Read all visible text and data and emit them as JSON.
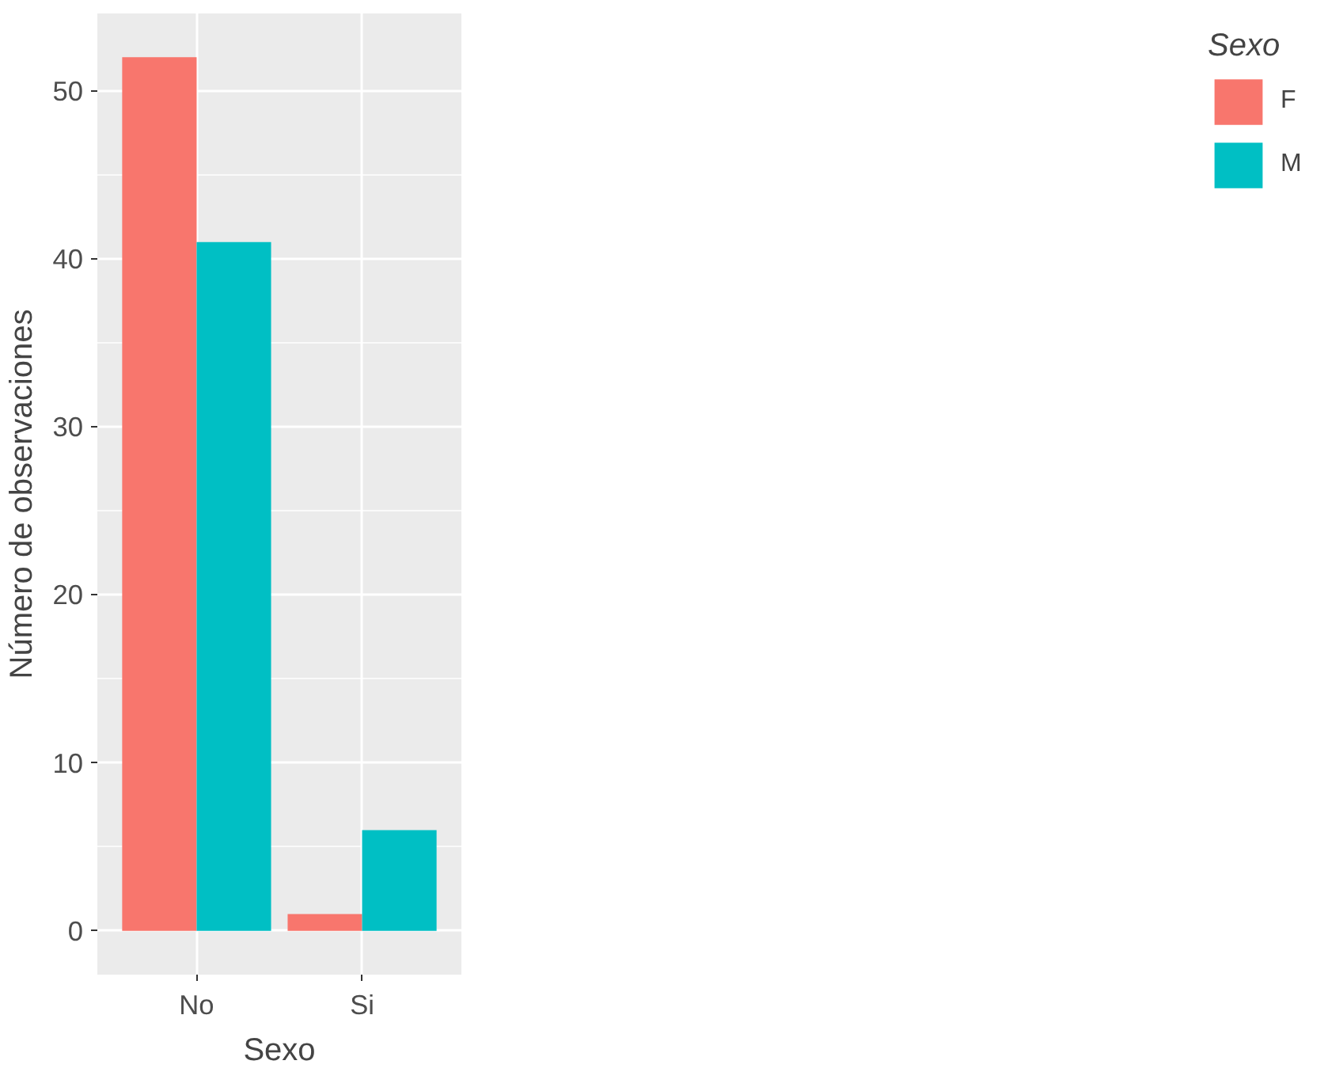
{
  "chart_data": {
    "type": "bar",
    "xlabel": "Sexo",
    "ylabel": "Número de observaciones",
    "legend_title": "Sexo",
    "categories": [
      "No",
      "Si"
    ],
    "series": [
      {
        "name": "F",
        "color": "#f8766d",
        "values": [
          52,
          1
        ]
      },
      {
        "name": "M",
        "color": "#00bfc4",
        "values": [
          41,
          6
        ]
      }
    ],
    "ylim": [
      -2.6,
      54.6
    ],
    "yticks": [
      0,
      10,
      20,
      30,
      40,
      50
    ],
    "grid": true,
    "legend": "right"
  }
}
